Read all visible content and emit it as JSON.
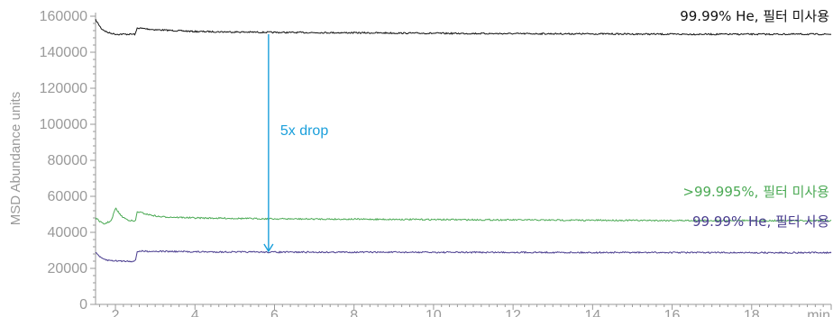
{
  "chart_data": {
    "type": "line",
    "ylabel": "MSD Abundance units",
    "xunit": "min",
    "xlim": [
      1.5,
      20
    ],
    "ylim": [
      0,
      160000
    ],
    "xticks": [
      2,
      4,
      6,
      8,
      10,
      12,
      14,
      16,
      18
    ],
    "yticks": [
      0,
      20000,
      40000,
      60000,
      80000,
      100000,
      120000,
      140000,
      160000
    ],
    "grid": false,
    "series": [
      {
        "name": "99.99% He, 필터 미사용",
        "color": "#111111",
        "x": [
          1.5,
          1.65,
          1.8,
          2.0,
          2.3,
          2.5,
          2.55,
          3.0,
          4,
          6,
          8,
          10,
          12,
          14,
          16,
          18,
          20
        ],
        "y": [
          158000,
          153000,
          151000,
          150000,
          150000,
          150000,
          153500,
          152500,
          151500,
          151000,
          150800,
          150500,
          150300,
          150200,
          150000,
          150000,
          150000
        ]
      },
      {
        "name": ">99.995%, 필터 미사용",
        "color": "#4caa55",
        "x": [
          1.5,
          1.7,
          1.9,
          2.0,
          2.15,
          2.3,
          2.5,
          2.55,
          2.8,
          3.1,
          4,
          6,
          8,
          10,
          12,
          14,
          16,
          18,
          20
        ],
        "y": [
          48000,
          44500,
          46500,
          53500,
          49000,
          47000,
          46000,
          51500,
          50000,
          48700,
          48000,
          47500,
          47300,
          47100,
          46900,
          46700,
          46600,
          46500,
          46500
        ]
      },
      {
        "name": "99.99% He, 필터 사용",
        "color": "#4a3d8f",
        "x": [
          1.5,
          1.65,
          1.8,
          2.0,
          2.3,
          2.5,
          2.55,
          3.0,
          4,
          6,
          8,
          10,
          12,
          14,
          16,
          18,
          20
        ],
        "y": [
          29000,
          25500,
          24500,
          24200,
          24000,
          24000,
          29500,
          29500,
          29200,
          29000,
          29000,
          28900,
          28900,
          28800,
          28800,
          28700,
          28700
        ]
      }
    ],
    "annotations": [
      {
        "text": "5x drop",
        "color": "#1a9fdb",
        "x": 5.85,
        "y_from": 151000,
        "y_to": 29000
      }
    ]
  }
}
